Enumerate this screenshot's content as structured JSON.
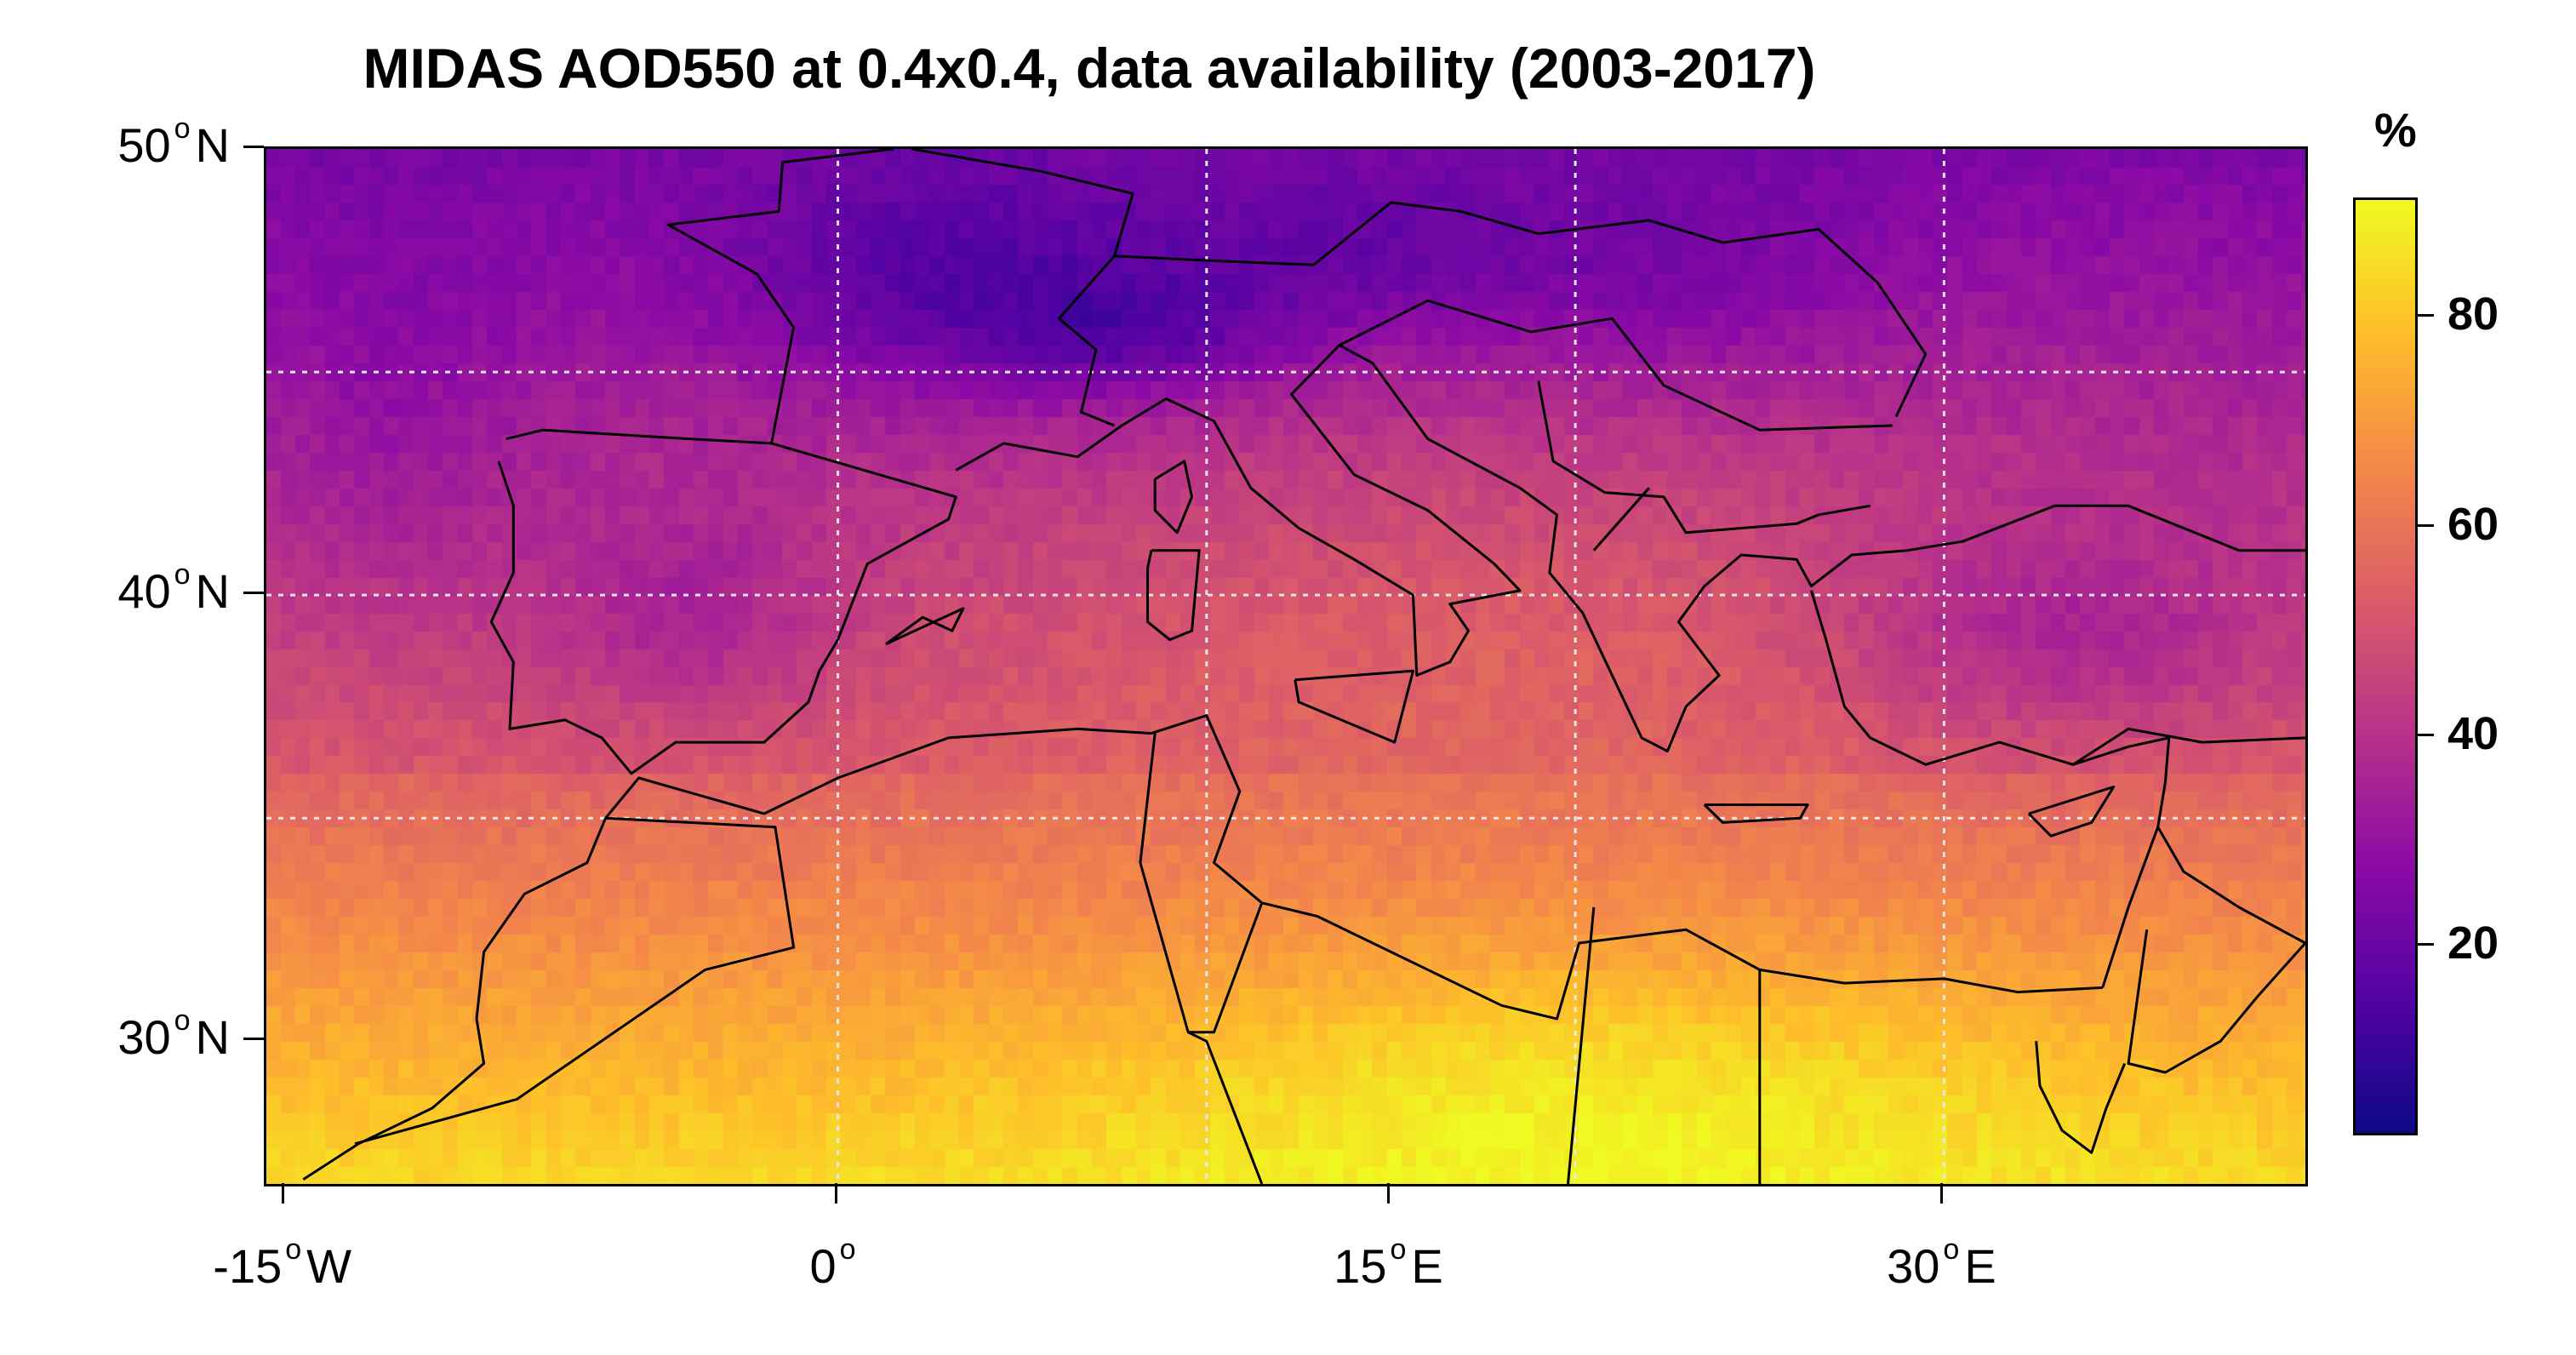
{
  "title": "MIDAS AOD550 at 0.4x0.4, data availability (2003-2017)",
  "map": {
    "lon_range": [
      -15.5,
      39.8
    ],
    "lat_range": [
      26.8,
      50
    ],
    "y_labels": [
      {
        "lat": 50,
        "num": "50",
        "hemi": "N"
      },
      {
        "lat": 40,
        "num": "40",
        "hemi": "N"
      },
      {
        "lat": 30,
        "num": "30",
        "hemi": "N"
      }
    ],
    "x_labels": [
      {
        "lon": -15,
        "num": "-15",
        "hemi": "W"
      },
      {
        "lon": 0,
        "num": "0",
        "hemi": ""
      },
      {
        "lon": 15,
        "num": "15",
        "hemi": "E"
      },
      {
        "lon": 30,
        "num": "30",
        "hemi": "E"
      }
    ],
    "grid_lons": [
      0,
      10,
      20,
      30
    ],
    "grid_lats": [
      35,
      40,
      45
    ],
    "gridlines": "dotted"
  },
  "colorbar": {
    "unit": "%",
    "range": [
      2,
      91
    ],
    "ticks": [
      "20",
      "40",
      "60",
      "80"
    ],
    "tick_values": [
      20,
      40,
      60,
      80
    ],
    "colors": [
      "#0d0887",
      "#5302a3",
      "#8b0aa5",
      "#b83289",
      "#db5c68",
      "#f48849",
      "#febd2a",
      "#f0f921"
    ]
  },
  "colors": {
    "gridline": "#e8e8e8",
    "coastline": "#000000"
  }
}
